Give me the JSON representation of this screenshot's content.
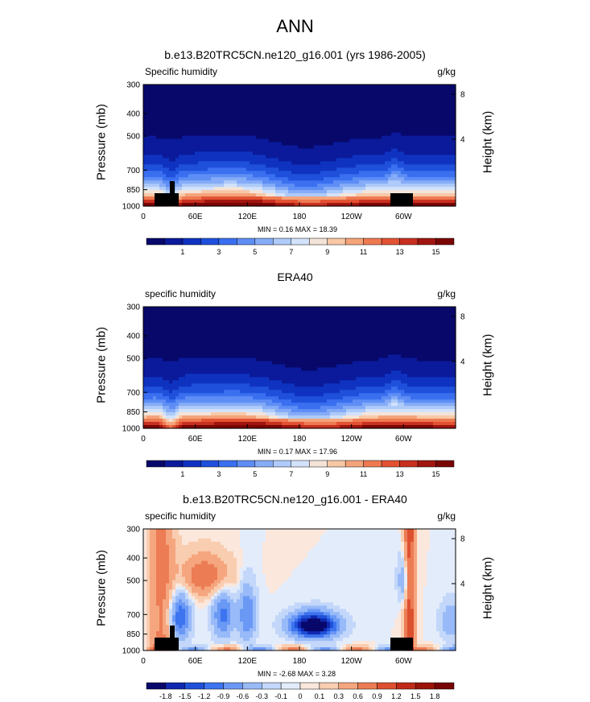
{
  "figure": {
    "main_title": "ANN",
    "colors": {
      "abs_levels": [
        "#08086b",
        "#0a1a9a",
        "#0f33c0",
        "#1f50dc",
        "#3a6ff0",
        "#5e8ef5",
        "#86acf7",
        "#aecbf9",
        "#d3e2fb",
        "#f4e4d8",
        "#f8c8a6",
        "#f5a37a",
        "#ee7a52",
        "#e25232",
        "#c83020",
        "#a11510",
        "#7a0505"
      ],
      "diff_levels": [
        "#08086b",
        "#1028b0",
        "#2050d8",
        "#3d74ef",
        "#6a98f5",
        "#98baf8",
        "#c3d7fa",
        "#e3ecfb",
        "#fbe7dc",
        "#f9cdb0",
        "#f5a67e",
        "#ec7c54",
        "#dc5030",
        "#bf2a18",
        "#9a1408",
        "#780505"
      ],
      "terrain": "#000000"
    }
  },
  "panels": [
    {
      "title": "b.e13.B20TRC5CN.ne120_g16.001 (yrs 1986-2005)",
      "left_string": "Specific humidity",
      "right_string": "g/kg",
      "minmax": "MIN =  0.16  MAX =  18.39",
      "chart_data": {
        "type": "heatmap",
        "title": "b.e13.B20TRC5CN.ne120_g16.001 (yrs 1986-2005)",
        "xlabel": "",
        "ylabel": "Pressure (mb)",
        "y2label": "Height (km)",
        "x_ticks": [
          "0",
          "60E",
          "120E",
          "180",
          "120W",
          "60W"
        ],
        "y_ticks": [
          "300",
          "400",
          "500",
          "700",
          "850",
          "1000"
        ],
        "y2_ticks": [
          "8",
          "4"
        ],
        "ylim": [
          1000,
          300
        ],
        "variable": "Specific humidity",
        "units": "g/kg",
        "min": 0.16,
        "max": 18.39,
        "colorbar_labels": [
          "1",
          "3",
          "5",
          "7",
          "9",
          "11",
          "13",
          "15"
        ],
        "kind": "abs"
      }
    },
    {
      "title": "ERA40",
      "left_string": "specific humidity",
      "right_string": "g/kg",
      "minmax": "MIN =  0.17  MAX =  17.96",
      "chart_data": {
        "type": "heatmap",
        "title": "ERA40",
        "xlabel": "",
        "ylabel": "Pressure (mb)",
        "y2label": "Height (km)",
        "x_ticks": [
          "0",
          "60E",
          "120E",
          "180",
          "120W",
          "60W"
        ],
        "y_ticks": [
          "300",
          "400",
          "500",
          "700",
          "850",
          "1000"
        ],
        "y2_ticks": [
          "8",
          "4"
        ],
        "ylim": [
          1000,
          300
        ],
        "variable": "specific humidity",
        "units": "g/kg",
        "min": 0.17,
        "max": 17.96,
        "colorbar_labels": [
          "1",
          "3",
          "5",
          "7",
          "9",
          "11",
          "13",
          "15"
        ],
        "kind": "abs"
      }
    },
    {
      "title": "b.e13.B20TRC5CN.ne120_g16.001 - ERA40",
      "left_string": "specific humidity",
      "right_string": "g/kg",
      "minmax": "MIN = -2.68  MAX =  3.28",
      "chart_data": {
        "type": "heatmap",
        "title": "b.e13.B20TRC5CN.ne120_g16.001 - ERA40",
        "xlabel": "",
        "ylabel": "Pressure (mb)",
        "y2label": "Height (km)",
        "x_ticks": [
          "0",
          "60E",
          "120E",
          "180",
          "120W",
          "60W"
        ],
        "y_ticks": [
          "300",
          "400",
          "500",
          "700",
          "850",
          "1000"
        ],
        "y2_ticks": [
          "8",
          "4"
        ],
        "ylim": [
          1000,
          300
        ],
        "variable": "specific humidity",
        "units": "g/kg",
        "min": -2.68,
        "max": 3.28,
        "colorbar_labels": [
          "-1.8",
          "-1.5",
          "-1.2",
          "-0.9",
          "-0.6",
          "-0.3",
          "-0.1",
          "0",
          "0.1",
          "0.3",
          "0.6",
          "0.9",
          "1.2",
          "1.5",
          "1.8"
        ],
        "kind": "diff"
      }
    }
  ]
}
